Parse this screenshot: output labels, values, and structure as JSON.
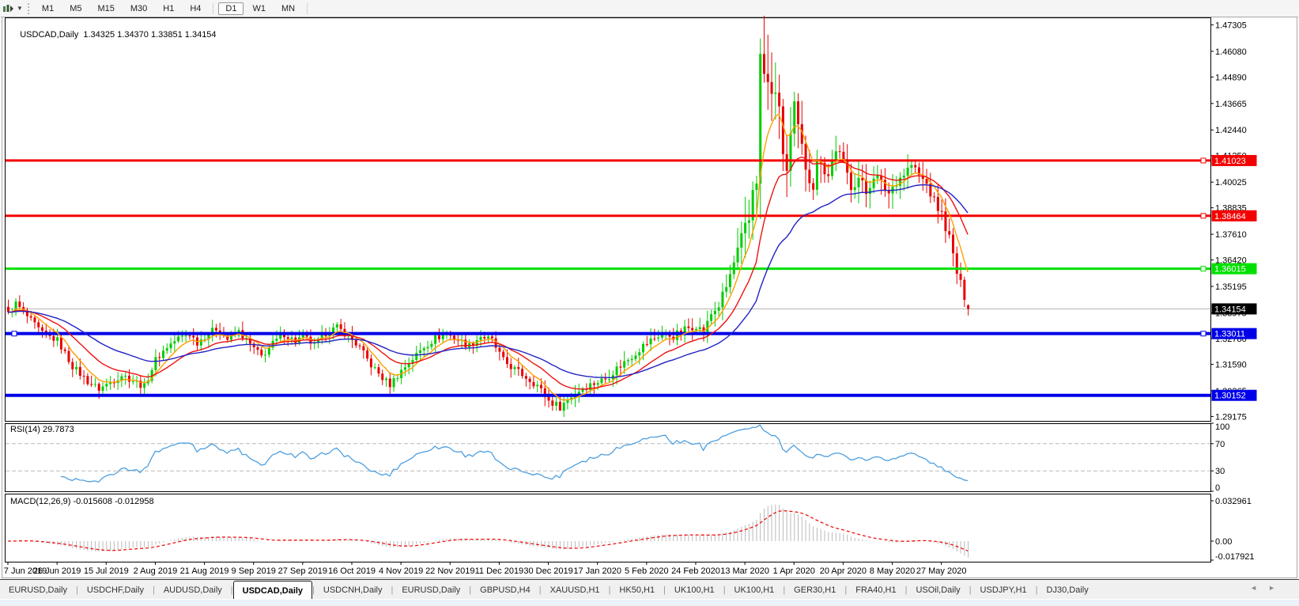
{
  "toolbar": {
    "timeframes": [
      "M1",
      "M5",
      "M15",
      "M30",
      "H1",
      "H4",
      "D1",
      "W1",
      "MN"
    ],
    "active_timeframe": "D1"
  },
  "chart_header": {
    "title": "USDCAD,Daily",
    "ohlc_text": "1.34325 1.34370 1.33851 1.34154"
  },
  "indicator_labels": {
    "rsi": "RSI(14) 29.7873",
    "macd": "MACD(12,26,9) -0.015608 -0.012958"
  },
  "tabs": {
    "items": [
      "EURUSD,Daily",
      "USDCHF,Daily",
      "AUDUSD,Daily",
      "USDCAD,Daily",
      "USDCNH,Daily",
      "EURUSD,Daily",
      "GBPUSD,H4",
      "XAUUSD,H1",
      "HK50,H1",
      "UK100,H1",
      "UK100,H1",
      "GER30,H1",
      "FRA40,H1",
      "USOil,Daily",
      "USDJPY,H1",
      "DJ30,Daily"
    ],
    "active_index": 3
  },
  "chart_data": {
    "type": "candlestick",
    "title": "USDCAD Daily with RSI(14) and MACD(12,26,9)",
    "symbol": "USDCAD",
    "period": "Daily",
    "ohlc_current": {
      "open": 1.34325,
      "high": 1.3437,
      "low": 1.33851,
      "close": 1.34154
    },
    "price_axis_ticks": [
      "1.47305",
      "1.46080",
      "1.44890",
      "1.43665",
      "1.42440",
      "1.41250",
      "1.40025",
      "1.38835",
      "1.37610",
      "1.36420",
      "1.35195",
      "1.33975",
      "1.32780",
      "1.31590",
      "1.30365",
      "1.29175"
    ],
    "time_axis_ticks": [
      "7 Jun 2019",
      "26 Jun 2019",
      "15 Jul 2019",
      "2 Aug 2019",
      "21 Aug 2019",
      "9 Sep 2019",
      "27 Sep 2019",
      "16 Oct 2019",
      "4 Nov 2019",
      "22 Nov 2019",
      "11 Dec 2019",
      "30 Dec 2019",
      "17 Jan 2020",
      "5 Feb 2020",
      "24 Feb 2020",
      "13 Mar 2020",
      "1 Apr 2020",
      "20 Apr 2020",
      "8 May 2020",
      "27 May 2020"
    ],
    "rsi_axis_ticks": [
      "100",
      "70",
      "30",
      "0"
    ],
    "macd_axis_ticks": [
      "0.032961",
      "0.00",
      "-0.017921"
    ],
    "price_range": [
      1.2897,
      1.4765
    ],
    "candle_count": 255,
    "ticks_every_candles": 13,
    "close_anchors": [
      [
        0,
        1.339
      ],
      [
        2,
        1.344
      ],
      [
        5,
        1.338
      ],
      [
        9,
        1.33
      ],
      [
        13,
        1.327
      ],
      [
        17,
        1.315
      ],
      [
        21,
        1.308
      ],
      [
        24,
        1.3045
      ],
      [
        27,
        1.3075
      ],
      [
        30,
        1.311
      ],
      [
        33,
        1.3085
      ],
      [
        36,
        1.3055
      ],
      [
        39,
        1.318
      ],
      [
        42,
        1.324
      ],
      [
        45,
        1.328
      ],
      [
        48,
        1.33
      ],
      [
        50,
        1.326
      ],
      [
        52,
        1.329
      ],
      [
        55,
        1.3325
      ],
      [
        58,
        1.3275
      ],
      [
        61,
        1.331
      ],
      [
        64,
        1.325
      ],
      [
        67,
        1.3195
      ],
      [
        70,
        1.3255
      ],
      [
        73,
        1.33
      ],
      [
        76,
        1.3265
      ],
      [
        78,
        1.329
      ],
      [
        81,
        1.3245
      ],
      [
        84,
        1.3305
      ],
      [
        87,
        1.333
      ],
      [
        90,
        1.329
      ],
      [
        93,
        1.3235
      ],
      [
        96,
        1.3155
      ],
      [
        99,
        1.3095
      ],
      [
        101,
        1.3065
      ],
      [
        104,
        1.313
      ],
      [
        107,
        1.3185
      ],
      [
        110,
        1.324
      ],
      [
        113,
        1.328
      ],
      [
        116,
        1.33
      ],
      [
        119,
        1.3272
      ],
      [
        122,
        1.3245
      ],
      [
        125,
        1.329
      ],
      [
        128,
        1.3268
      ],
      [
        131,
        1.3175
      ],
      [
        134,
        1.3135
      ],
      [
        137,
        1.31
      ],
      [
        140,
        1.3062
      ],
      [
        143,
        1.299
      ],
      [
        146,
        1.2962
      ],
      [
        149,
        1.3012
      ],
      [
        152,
        1.305
      ],
      [
        155,
        1.3072
      ],
      [
        158,
        1.3092
      ],
      [
        161,
        1.314
      ],
      [
        164,
        1.3182
      ],
      [
        167,
        1.323
      ],
      [
        170,
        1.327
      ],
      [
        173,
        1.3302
      ],
      [
        176,
        1.3288
      ],
      [
        179,
        1.332
      ],
      [
        182,
        1.3342
      ],
      [
        184,
        1.3302
      ],
      [
        186,
        1.3392
      ],
      [
        188,
        1.3432
      ],
      [
        190,
        1.3515
      ],
      [
        192,
        1.3625
      ],
      [
        194,
        1.3728
      ],
      [
        196,
        1.382
      ],
      [
        197,
        1.398
      ],
      [
        198,
        1.404
      ],
      [
        199,
        1.456
      ],
      [
        200,
        1.45
      ],
      [
        201,
        1.445
      ],
      [
        202,
        1.438
      ],
      [
        203,
        1.4452
      ],
      [
        204,
        1.43
      ],
      [
        205,
        1.4152
      ],
      [
        206,
        1.4052
      ],
      [
        207,
        1.4205
      ],
      [
        208,
        1.4332
      ],
      [
        209,
        1.4242
      ],
      [
        210,
        1.4152
      ],
      [
        211,
        1.4082
      ],
      [
        212,
        1.4032
      ],
      [
        213,
        1.3992
      ],
      [
        214,
        1.4082
      ],
      [
        215,
        1.4122
      ],
      [
        216,
        1.4062
      ],
      [
        217,
        1.4032
      ],
      [
        218,
        1.4102
      ],
      [
        219,
        1.4162
      ],
      [
        220,
        1.4122
      ],
      [
        221,
        1.4082
      ],
      [
        223,
        1.3992
      ],
      [
        225,
        1.4022
      ],
      [
        227,
        1.3952
      ],
      [
        229,
        1.4042
      ],
      [
        231,
        1.3992
      ],
      [
        233,
        1.3952
      ],
      [
        235,
        1.4012
      ],
      [
        237,
        1.4042
      ],
      [
        239,
        1.4082
      ],
      [
        241,
        1.4032
      ],
      [
        243,
        1.3992
      ],
      [
        245,
        1.3912
      ],
      [
        247,
        1.3852
      ],
      [
        249,
        1.3742
      ],
      [
        251,
        1.3582
      ],
      [
        253,
        1.3472
      ],
      [
        254,
        1.34154
      ]
    ],
    "volatility_anchors": [
      [
        0,
        0.004
      ],
      [
        100,
        0.004
      ],
      [
        140,
        0.0045
      ],
      [
        182,
        0.005
      ],
      [
        190,
        0.007
      ],
      [
        194,
        0.011
      ],
      [
        197,
        0.016
      ],
      [
        200,
        0.02
      ],
      [
        203,
        0.016
      ],
      [
        207,
        0.013
      ],
      [
        212,
        0.01
      ],
      [
        220,
        0.0085
      ],
      [
        232,
        0.0075
      ],
      [
        244,
        0.0065
      ],
      [
        252,
        0.006
      ],
      [
        254,
        0.0026
      ]
    ],
    "extreme_high": {
      "index": 199,
      "price": 1.4668
    },
    "extreme_low": {
      "index": 146,
      "price": 1.2952
    },
    "horizontal_lines": [
      {
        "label": "1.41023",
        "price": 1.41023,
        "color": "#F40000",
        "width": 3,
        "handle_right": true,
        "handle_left": false,
        "label_fg": "#FFFFFF"
      },
      {
        "label": "1.38464",
        "price": 1.38464,
        "color": "#F40000",
        "width": 3,
        "handle_right": true,
        "handle_left": false,
        "label_fg": "#FFFFFF"
      },
      {
        "label": "1.36015",
        "price": 1.36015,
        "color": "#00E000",
        "width": 3,
        "handle_right": true,
        "handle_left": false,
        "label_fg": "#FFFFFF"
      },
      {
        "label": "1.33011",
        "price": 1.33011,
        "color": "#0000E8",
        "width": 4,
        "handle_right": true,
        "handle_left": true,
        "label_fg": "#FFFFFF"
      },
      {
        "label": "1.30152",
        "price": 1.30152,
        "color": "#0000E8",
        "width": 4,
        "handle_right": false,
        "handle_left": false,
        "label_fg": "#FFFFFF"
      }
    ],
    "current_price_line": {
      "price": 1.34154,
      "label": "1.34154",
      "line_color": "#B4B4B4",
      "label_bg": "#000000",
      "label_fg": "#FFFFFF"
    },
    "moving_averages": [
      {
        "name": "fast",
        "period": 7,
        "color": "#FF9E00"
      },
      {
        "name": "medium",
        "period": 18,
        "color": "#EE1111"
      },
      {
        "name": "slow",
        "period": 40,
        "color": "#2222C4"
      }
    ],
    "candle_colors": {
      "up": "#00CC00",
      "down": "#E80000"
    },
    "rsi": {
      "period": 14,
      "current": 29.7873,
      "levels": [
        70,
        30
      ],
      "color": "#4D9FE0",
      "level_color": "#B8B8B8"
    },
    "macd": {
      "fast": 12,
      "slow": 26,
      "signal": 9,
      "current_main": -0.015608,
      "current_signal": -0.012958,
      "scale_max": 0.032961,
      "scale_min": -0.017921,
      "histogram_color": "#B9B9B9",
      "signal_color": "#EE1111"
    }
  }
}
